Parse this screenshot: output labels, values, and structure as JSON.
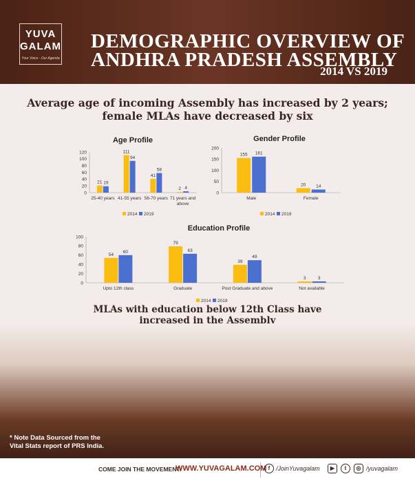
{
  "header": {
    "logo_line1": "YUVA",
    "logo_line2": "GALAM",
    "logo_tagline": "Your Voice - Our Agenda",
    "title_line1": "DEMOGRAPHIC OVERVIEW OF",
    "title_line2": "ANDHRA PRADESH ASSEMBLY",
    "title_line3": "2014 VS 2019"
  },
  "headline": {
    "line1": "Average age of incoming Assembly has increased by 2 years;",
    "line2": "female MLAs have decreased by six"
  },
  "subheadline": {
    "line1": "MLAs with education below 12th Class have",
    "line2": "increased in the Assembly"
  },
  "colors": {
    "series_2014": "#fbbd12",
    "series_2019": "#4a6fcf"
  },
  "chart_data": [
    {
      "type": "bar",
      "title": "Age Profile",
      "categories": [
        "25-40 years",
        "41-55 years",
        "56-70 years",
        "71 years and above"
      ],
      "series": [
        {
          "name": "2014",
          "values": [
            21,
            111,
            41,
            2
          ]
        },
        {
          "name": "2019",
          "values": [
            19,
            94,
            58,
            4
          ]
        }
      ],
      "ylim": [
        0,
        120
      ],
      "yticks": [
        0,
        20,
        40,
        60,
        80,
        100,
        120
      ],
      "legend": "bottom",
      "grid": false
    },
    {
      "type": "bar",
      "title": "Gender Profile",
      "categories": [
        "Male",
        "Female"
      ],
      "series": [
        {
          "name": "2014",
          "values": [
            155,
            20
          ]
        },
        {
          "name": "2019",
          "values": [
            161,
            14
          ]
        }
      ],
      "ylim": [
        0,
        200
      ],
      "yticks": [
        0,
        50,
        100,
        150,
        200
      ],
      "legend": "bottom",
      "grid": false
    },
    {
      "type": "bar",
      "title": "Education Profile",
      "categories": [
        "Upto 12th class",
        "Graduate",
        "Post Graduate and above",
        "Not available"
      ],
      "series": [
        {
          "name": "2014",
          "values": [
            54,
            79,
            39,
            3
          ]
        },
        {
          "name": "2019",
          "values": [
            60,
            63,
            49,
            3
          ]
        }
      ],
      "ylim": [
        0,
        100
      ],
      "yticks": [
        0,
        20,
        40,
        60,
        80,
        100
      ],
      "legend": "bottom",
      "grid": false
    }
  ],
  "note": {
    "line1": "* Note Data Sourced from the",
    "line2": "Vital Stats report of PRS India."
  },
  "footer": {
    "come_join": "COME JOIN THE MOVEMENT:",
    "website": "WWW.YUVAGALAM.COM",
    "facebook_handle": "/JoinYuvagalam",
    "other_handle": "/yuvagalam",
    "facebook_icon": "f",
    "youtube_icon": "▶",
    "twitter_icon": "t",
    "instagram_icon": "◎"
  }
}
